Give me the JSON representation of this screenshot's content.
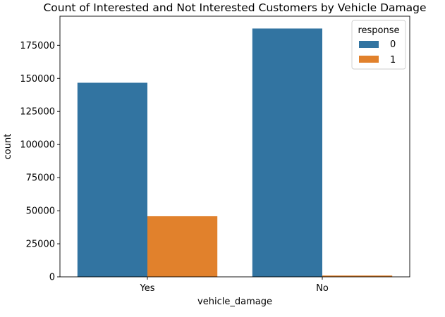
{
  "chart_data": {
    "type": "bar",
    "title": "Count of Interested and Not Interested Customers by Vehicle Damage",
    "xlabel": "vehicle_damage",
    "ylabel": "count",
    "categories": [
      "Yes",
      "No"
    ],
    "series": [
      {
        "name": "0",
        "color": "#3274a1",
        "values": [
          146700,
          187700
        ]
      },
      {
        "name": "1",
        "color": "#e1812c",
        "values": [
          45800,
          1000
        ]
      }
    ],
    "ylim": [
      0,
      197000
    ],
    "yticks": [
      0,
      25000,
      50000,
      75000,
      100000,
      125000,
      150000,
      175000
    ],
    "legend": {
      "title": "response",
      "placement": "top-right"
    },
    "grid": false
  }
}
